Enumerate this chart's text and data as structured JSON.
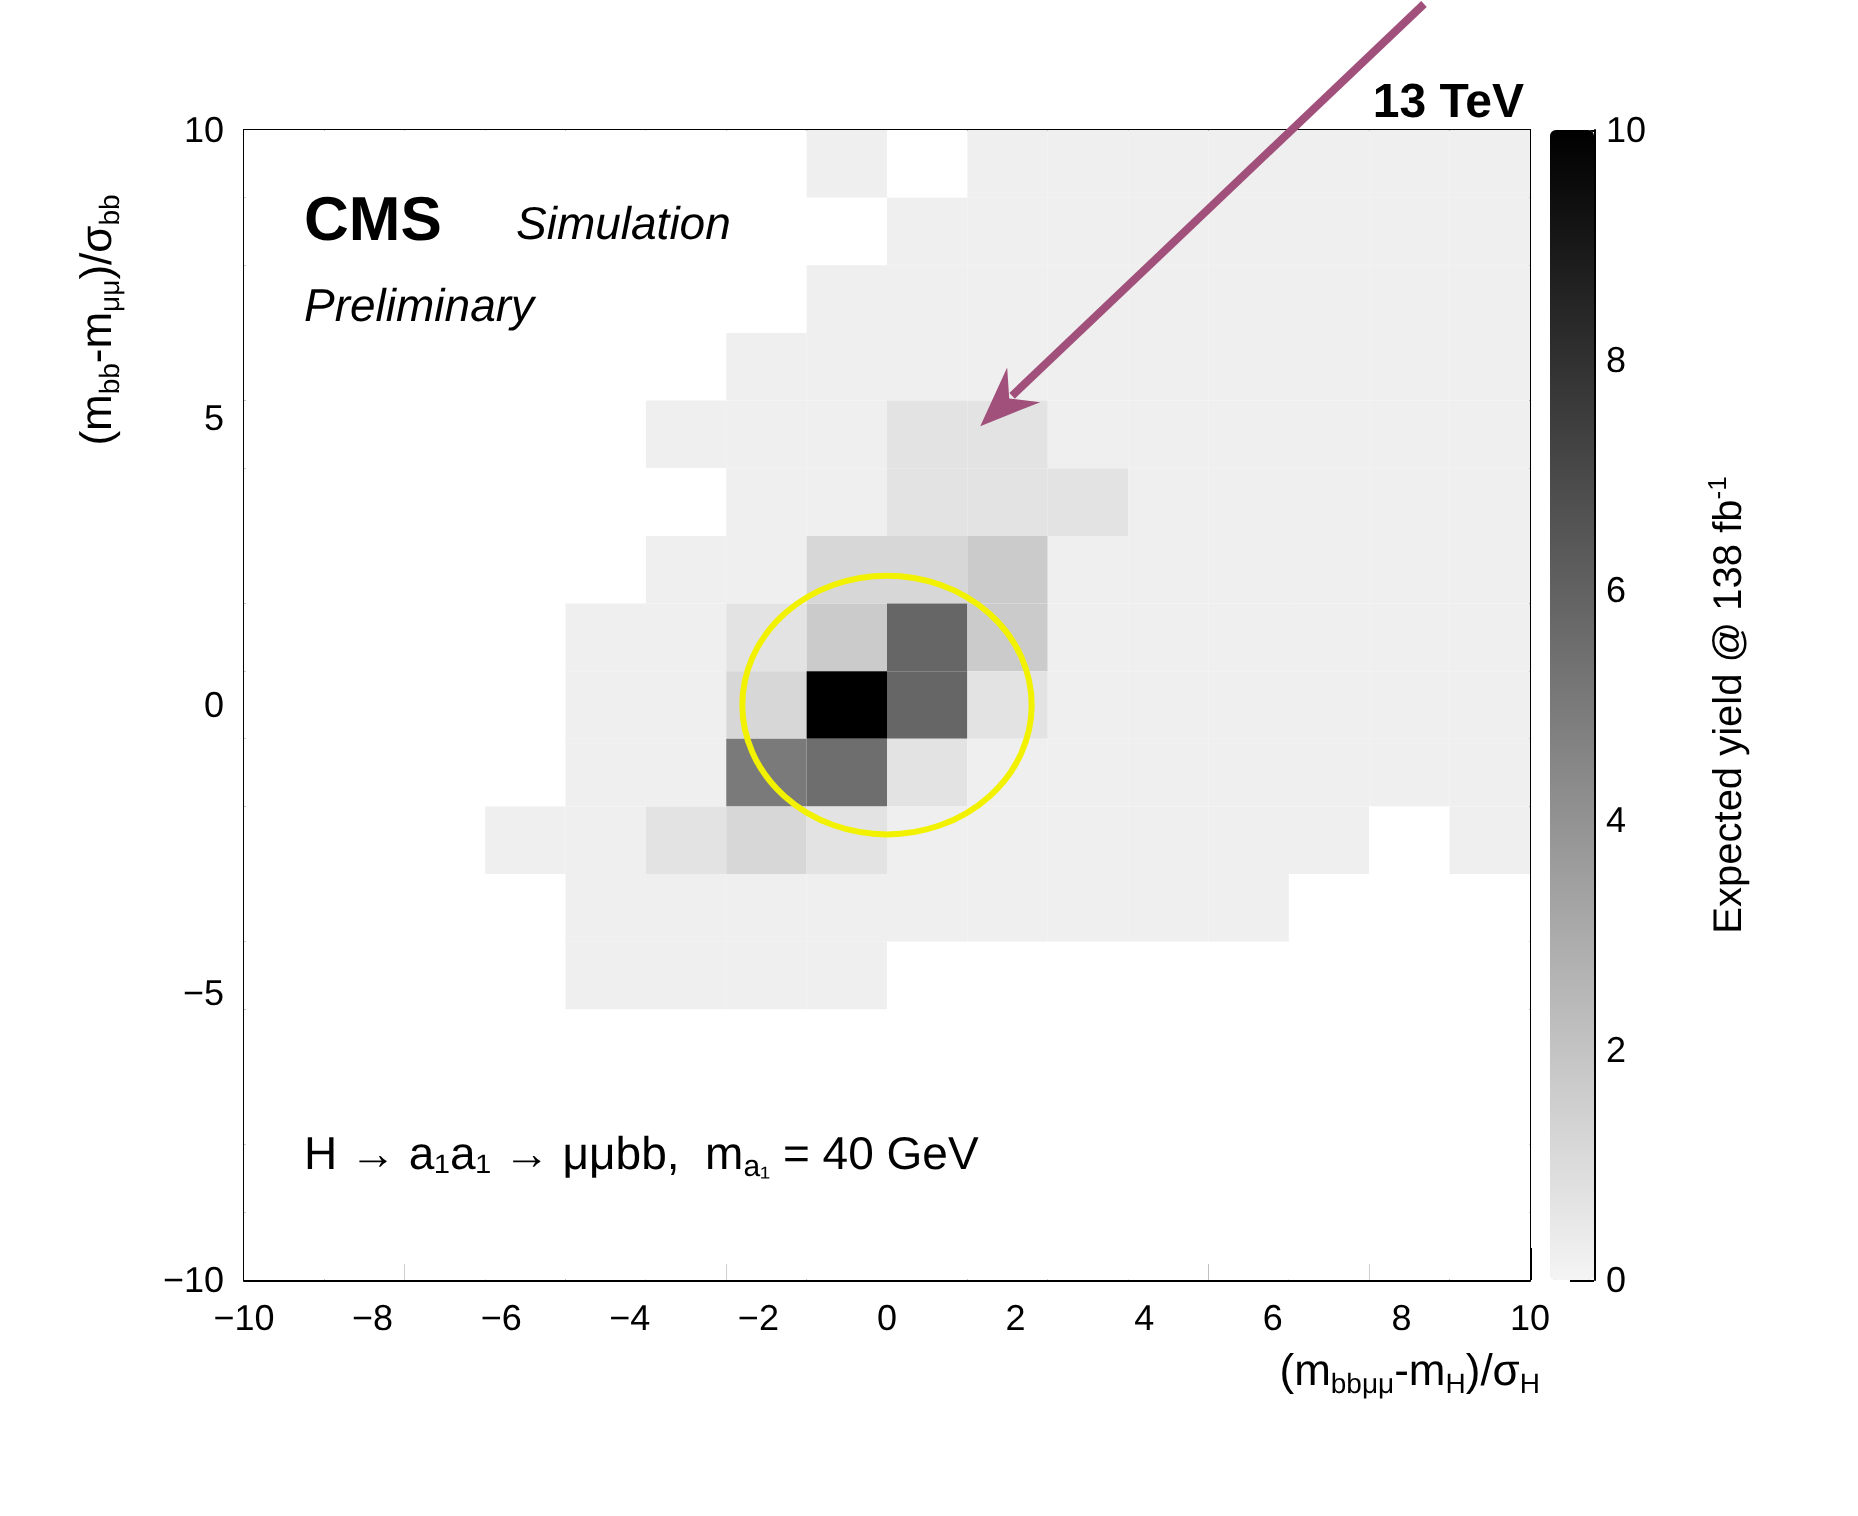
{
  "chart_data": {
    "type": "heatmap",
    "title": "13 TeV",
    "xlabel": "(m$_{bbμμ}$-m$_{H}$)/σ$_{H}$",
    "ylabel": "(m$_{bb}$-m$_{μμ}$)/σ$_{bb}$",
    "clabel": "Expected yield @ 138 fb$^{-1}$",
    "annotations": [
      "CMS",
      "Simulation",
      "Preliminary",
      "H → a₁a₁ → μμbb,  m$_{a₁}$ = 40 GeV"
    ],
    "xlim": [
      -10,
      10
    ],
    "xticks": [
      -10,
      -8,
      -6,
      -4,
      -2,
      0,
      2,
      4,
      6,
      8,
      10
    ],
    "ylim": [
      -10,
      10
    ],
    "yticks": [
      -10,
      -5,
      0,
      5,
      10
    ],
    "clim": [
      0,
      10
    ],
    "cticks": [
      0,
      2,
      4,
      6,
      8,
      10
    ],
    "cells": [
      [
        0,
        0,
        0,
        0,
        0,
        0,
        0,
        0.2,
        0,
        0.2,
        0.2,
        0.2,
        0.2,
        0.2,
        0.2,
        0.2
      ],
      [
        0,
        0,
        0,
        0,
        0,
        0,
        0,
        0,
        0.2,
        0.2,
        0.2,
        0.2,
        0.2,
        0.2,
        0.2,
        0.2
      ],
      [
        0,
        0,
        0,
        0,
        0,
        0,
        0,
        0.2,
        0.2,
        0.2,
        0.2,
        0.2,
        0.2,
        0.2,
        0.2,
        0.2
      ],
      [
        0,
        0,
        0,
        0,
        0,
        0,
        0.2,
        0.2,
        0.2,
        0.2,
        0.2,
        0.2,
        0.2,
        0.2,
        0.2,
        0.2
      ],
      [
        0,
        0,
        0,
        0,
        0,
        0.2,
        0.2,
        0.2,
        0.7,
        0.7,
        0.2,
        0.2,
        0.2,
        0.2,
        0.2,
        0.2
      ],
      [
        0,
        0,
        0,
        0,
        0,
        0,
        0.2,
        0.2,
        0.7,
        0.7,
        0.7,
        0.2,
        0.2,
        0.2,
        0.2,
        0.2
      ],
      [
        0,
        0,
        0,
        0,
        0,
        0.2,
        0.2,
        1.2,
        1.2,
        1.7,
        0.2,
        0.2,
        0.2,
        0.2,
        0.2,
        0.2
      ],
      [
        0,
        0,
        0,
        0,
        0.2,
        0.2,
        0.7,
        1.7,
        5.8,
        1.7,
        0.2,
        0.2,
        0.2,
        0.2,
        0.2,
        0.2
      ],
      [
        0,
        0,
        0,
        0,
        0.2,
        0.2,
        1.2,
        10,
        5.8,
        0.7,
        0.2,
        0.2,
        0.2,
        0.2,
        0.2,
        0.2
      ],
      [
        0,
        0,
        0,
        0,
        0.2,
        0.2,
        5.0,
        5.5,
        0.7,
        0.2,
        0.2,
        0.2,
        0.2,
        0.2,
        0.2,
        0.2
      ],
      [
        0,
        0,
        0,
        0.2,
        0.2,
        0.7,
        1.2,
        0.7,
        0.2,
        0.2,
        0.2,
        0.2,
        0.2,
        0.2,
        0,
        0.2
      ],
      [
        0,
        0,
        0,
        0,
        0.2,
        0.2,
        0.2,
        0.2,
        0.2,
        0.2,
        0.2,
        0.2,
        0.2,
        0,
        0,
        0
      ],
      [
        0,
        0,
        0,
        0,
        0.2,
        0.2,
        0.2,
        0.2,
        0,
        0,
        0,
        0,
        0,
        0,
        0,
        0
      ],
      [
        0,
        0,
        0,
        0,
        0,
        0,
        0,
        0,
        0,
        0,
        0,
        0,
        0,
        0,
        0,
        0
      ],
      [
        0,
        0,
        0,
        0,
        0,
        0,
        0,
        0,
        0,
        0,
        0,
        0,
        0,
        0,
        0,
        0
      ],
      [
        0,
        0,
        0,
        0,
        0,
        0,
        0,
        0,
        0,
        0,
        0,
        0,
        0,
        0,
        0,
        0
      ],
      [
        0,
        0,
        0,
        0,
        0,
        0,
        0,
        0,
        0,
        0,
        0,
        0,
        0,
        0,
        0,
        0
      ]
    ]
  }
}
